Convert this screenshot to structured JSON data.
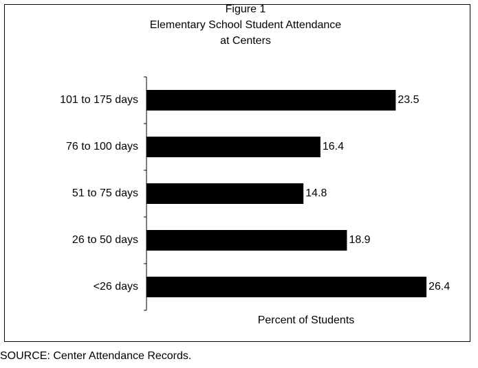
{
  "chart_data": {
    "type": "bar",
    "orientation": "horizontal",
    "title": [
      "Figure 1",
      "Elementary School Student Attendance",
      "at Centers"
    ],
    "categories": [
      "101 to 175 days",
      "76 to 100 days",
      "51 to 75 days",
      "26 to 50 days",
      "<26 days"
    ],
    "values": [
      23.5,
      16.4,
      14.8,
      18.9,
      26.4
    ],
    "color": "#000000",
    "xlim": [
      0,
      30
    ],
    "xlabel": "Percent of Students",
    "source": "SOURCE: Center Attendance Records."
  }
}
